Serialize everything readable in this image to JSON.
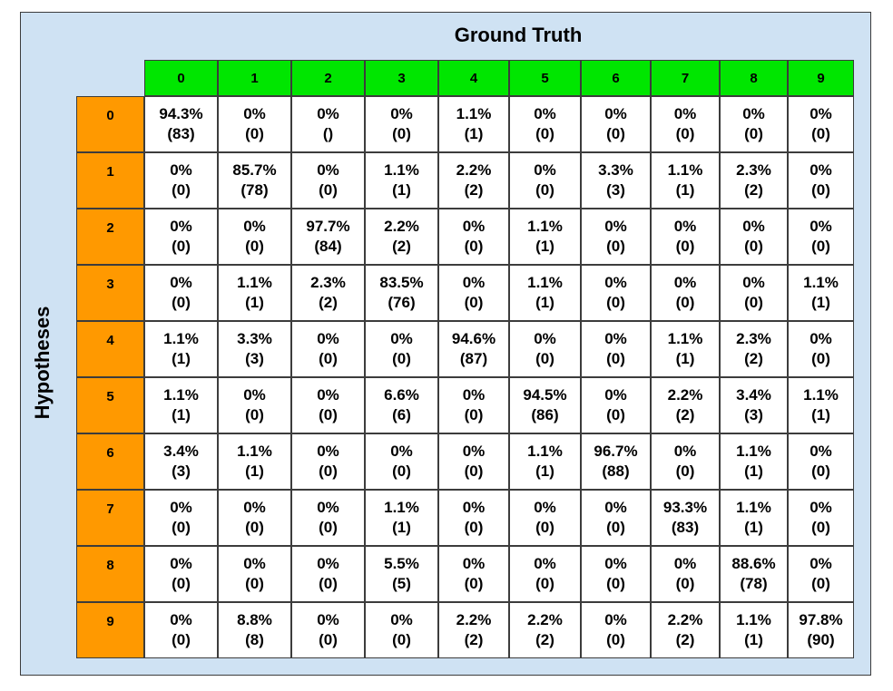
{
  "chart_data": {
    "type": "table",
    "title": "Ground Truth",
    "ylabel": "Hypotheses",
    "columns": [
      "0",
      "1",
      "2",
      "3",
      "4",
      "5",
      "6",
      "7",
      "8",
      "9"
    ],
    "rows": [
      "0",
      "1",
      "2",
      "3",
      "4",
      "5",
      "6",
      "7",
      "8",
      "9"
    ],
    "percent": [
      [
        "94.3%",
        "0%",
        "0%",
        "0%",
        "1.1%",
        "0%",
        "0%",
        "0%",
        "0%",
        "0%"
      ],
      [
        "0%",
        "85.7%",
        "0%",
        "1.1%",
        "2.2%",
        "0%",
        "3.3%",
        "1.1%",
        "2.3%",
        "0%"
      ],
      [
        "0%",
        "0%",
        "97.7%",
        "2.2%",
        "0%",
        "1.1%",
        "0%",
        "0%",
        "0%",
        "0%"
      ],
      [
        "0%",
        "1.1%",
        "2.3%",
        "83.5%",
        "0%",
        "1.1%",
        "0%",
        "0%",
        "0%",
        "1.1%"
      ],
      [
        "1.1%",
        "3.3%",
        "0%",
        "0%",
        "94.6%",
        "0%",
        "0%",
        "1.1%",
        "2.3%",
        "0%"
      ],
      [
        "1.1%",
        "0%",
        "0%",
        "6.6%",
        "0%",
        "94.5%",
        "0%",
        "2.2%",
        "3.4%",
        "1.1%"
      ],
      [
        "3.4%",
        "1.1%",
        "0%",
        "0%",
        "0%",
        "1.1%",
        "96.7%",
        "0%",
        "1.1%",
        "0%"
      ],
      [
        "0%",
        "0%",
        "0%",
        "1.1%",
        "0%",
        "0%",
        "0%",
        "93.3%",
        "1.1%",
        "0%"
      ],
      [
        "0%",
        "0%",
        "0%",
        "5.5%",
        "0%",
        "0%",
        "0%",
        "0%",
        "88.6%",
        "0%"
      ],
      [
        "0%",
        "8.8%",
        "0%",
        "0%",
        "2.2%",
        "2.2%",
        "0%",
        "2.2%",
        "1.1%",
        "97.8%"
      ]
    ],
    "counts": [
      [
        "(83)",
        "(0)",
        "()",
        "(0)",
        "(1)",
        "(0)",
        "(0)",
        "(0)",
        "(0)",
        "(0)"
      ],
      [
        "(0)",
        "(78)",
        "(0)",
        "(1)",
        "(2)",
        "(0)",
        "(3)",
        "(1)",
        "(2)",
        "(0)"
      ],
      [
        "(0)",
        "(0)",
        "(84)",
        "(2)",
        "(0)",
        "(1)",
        "(0)",
        "(0)",
        "(0)",
        "(0)"
      ],
      [
        "(0)",
        "(1)",
        "(2)",
        "(76)",
        "(0)",
        "(1)",
        "(0)",
        "(0)",
        "(0)",
        "(1)"
      ],
      [
        "(1)",
        "(3)",
        "(0)",
        "(0)",
        "(87)",
        "(0)",
        "(0)",
        "(1)",
        "(2)",
        "(0)"
      ],
      [
        "(1)",
        "(0)",
        "(0)",
        "(6)",
        "(0)",
        "(86)",
        "(0)",
        "(2)",
        "(3)",
        "(1)"
      ],
      [
        "(3)",
        "(1)",
        "(0)",
        "(0)",
        "(0)",
        "(1)",
        "(88)",
        "(0)",
        "(1)",
        "(0)"
      ],
      [
        "(0)",
        "(0)",
        "(0)",
        "(1)",
        "(0)",
        "(0)",
        "(0)",
        "(83)",
        "(1)",
        "(0)"
      ],
      [
        "(0)",
        "(0)",
        "(0)",
        "(5)",
        "(0)",
        "(0)",
        "(0)",
        "(0)",
        "(78)",
        "(0)"
      ],
      [
        "(0)",
        "(8)",
        "(0)",
        "(0)",
        "(2)",
        "(2)",
        "(0)",
        "(2)",
        "(1)",
        "(90)"
      ]
    ],
    "colors": {
      "panel_background": "#cfe2f3",
      "column_header": "#00e600",
      "row_header": "#ff9900",
      "cell_background": "#ffffff",
      "border": "#3c3c3c"
    }
  }
}
